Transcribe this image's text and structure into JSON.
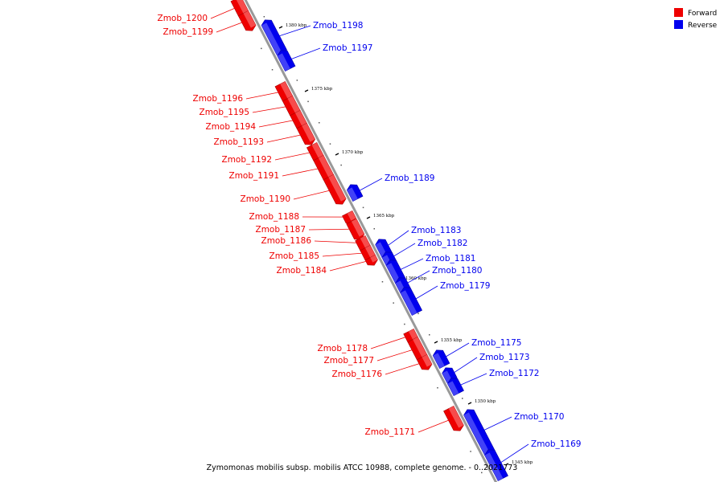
{
  "caption": "Zymomonas mobilis subsp. mobilis ATCC 10988, complete genome. - 0..2021773",
  "legend": [
    {
      "label": "Forward",
      "color": "#ee0000"
    },
    {
      "label": "Reverse",
      "color": "#0000ee"
    }
  ],
  "colors": {
    "forward": "#ee0000",
    "reverse": "#0000ee",
    "backbone": "#999999"
  },
  "ticks": [
    {
      "label": "1380 kbp"
    },
    {
      "label": "1375 kbp"
    },
    {
      "label": "1370 kbp"
    },
    {
      "label": "1365 kbp"
    },
    {
      "label": "1360 kbp"
    },
    {
      "label": "1355 kbp"
    },
    {
      "label": "1350 kbp"
    },
    {
      "label": "1345 kbp"
    }
  ],
  "genes": [
    {
      "name": "Zmob_1200",
      "strand": "forward"
    },
    {
      "name": "Zmob_1199",
      "strand": "forward"
    },
    {
      "name": "Zmob_1198",
      "strand": "reverse"
    },
    {
      "name": "Zmob_1197",
      "strand": "reverse"
    },
    {
      "name": "Zmob_1196",
      "strand": "forward"
    },
    {
      "name": "Zmob_1195",
      "strand": "forward"
    },
    {
      "name": "Zmob_1194",
      "strand": "forward"
    },
    {
      "name": "Zmob_1193",
      "strand": "forward"
    },
    {
      "name": "Zmob_1192",
      "strand": "forward"
    },
    {
      "name": "Zmob_1191",
      "strand": "forward"
    },
    {
      "name": "Zmob_1190",
      "strand": "forward"
    },
    {
      "name": "Zmob_1189",
      "strand": "reverse"
    },
    {
      "name": "Zmob_1188",
      "strand": "forward"
    },
    {
      "name": "Zmob_1187",
      "strand": "forward"
    },
    {
      "name": "Zmob_1186",
      "strand": "forward"
    },
    {
      "name": "Zmob_1185",
      "strand": "forward"
    },
    {
      "name": "Zmob_1184",
      "strand": "forward"
    },
    {
      "name": "Zmob_1183",
      "strand": "reverse"
    },
    {
      "name": "Zmob_1182",
      "strand": "reverse"
    },
    {
      "name": "Zmob_1181",
      "strand": "reverse"
    },
    {
      "name": "Zmob_1180",
      "strand": "reverse"
    },
    {
      "name": "Zmob_1179",
      "strand": "reverse"
    },
    {
      "name": "Zmob_1178",
      "strand": "forward"
    },
    {
      "name": "Zmob_1177",
      "strand": "forward"
    },
    {
      "name": "Zmob_1176",
      "strand": "forward"
    },
    {
      "name": "Zmob_1175",
      "strand": "reverse"
    },
    {
      "name": "Zmob_1173",
      "strand": "reverse"
    },
    {
      "name": "Zmob_1172",
      "strand": "reverse"
    },
    {
      "name": "Zmob_1171",
      "strand": "forward"
    },
    {
      "name": "Zmob_1170",
      "strand": "reverse"
    },
    {
      "name": "Zmob_1169",
      "strand": "reverse"
    }
  ]
}
